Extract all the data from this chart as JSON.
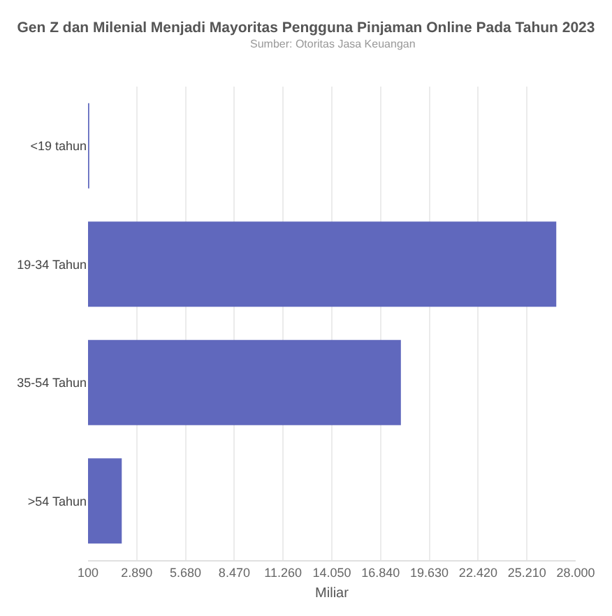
{
  "chart_data": {
    "type": "bar",
    "orientation": "horizontal",
    "title": "Gen Z dan Milenial Menjadi Mayoritas Pengguna Pinjaman Online Pada Tahun 2023",
    "subtitle": "Sumber: Otoritas Jasa Keuangan",
    "xlabel": "Miliar",
    "categories": [
      "<19 tahun",
      "19-34 Tahun",
      "35-54 Tahun",
      ">54 Tahun"
    ],
    "values": [
      170,
      26890,
      18000,
      2030
    ],
    "color": "#6068bd",
    "xlim": [
      100,
      28000
    ],
    "xticks": [
      {
        "value": 100,
        "label": "100"
      },
      {
        "value": 2890,
        "label": "2.890"
      },
      {
        "value": 5680,
        "label": "5.680"
      },
      {
        "value": 8470,
        "label": "8.470"
      },
      {
        "value": 11260,
        "label": "11.260"
      },
      {
        "value": 14050,
        "label": "14.050"
      },
      {
        "value": 16840,
        "label": "16.840"
      },
      {
        "value": 19630,
        "label": "19.630"
      },
      {
        "value": 22420,
        "label": "22.420"
      },
      {
        "value": 25210,
        "label": "25.210"
      },
      {
        "value": 28000,
        "label": "28.000"
      }
    ],
    "grid": "x",
    "legend": false
  }
}
